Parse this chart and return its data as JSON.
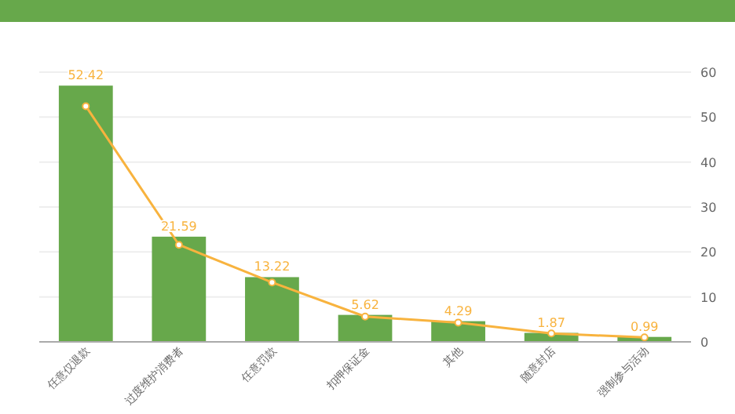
{
  "chart_data": {
    "type": "bar",
    "categories": [
      "任意仅退款",
      "过度维护消费者",
      "任意罚款",
      "扣押保证金",
      "其他",
      "随意封店",
      "强制参与活动"
    ],
    "series": [
      {
        "color": "#67a84b",
        "values": [
          57,
          23.4,
          14.4,
          6,
          4.6,
          2,
          1.1
        ]
      },
      {
        "type": "line",
        "color": "#f8b33e",
        "values": [
          52.42,
          21.59,
          13.22,
          5.62,
          4.29,
          1.87,
          0.99
        ],
        "value_labels": [
          "52.42",
          "21.59",
          "13.22",
          "5.62",
          "4.29",
          "1.87",
          "0.99"
        ]
      }
    ],
    "ylim": [
      0,
      60
    ],
    "yticks": [
      0,
      10,
      20,
      30,
      40,
      50,
      60
    ],
    "grid": "y",
    "marker": "circle"
  }
}
